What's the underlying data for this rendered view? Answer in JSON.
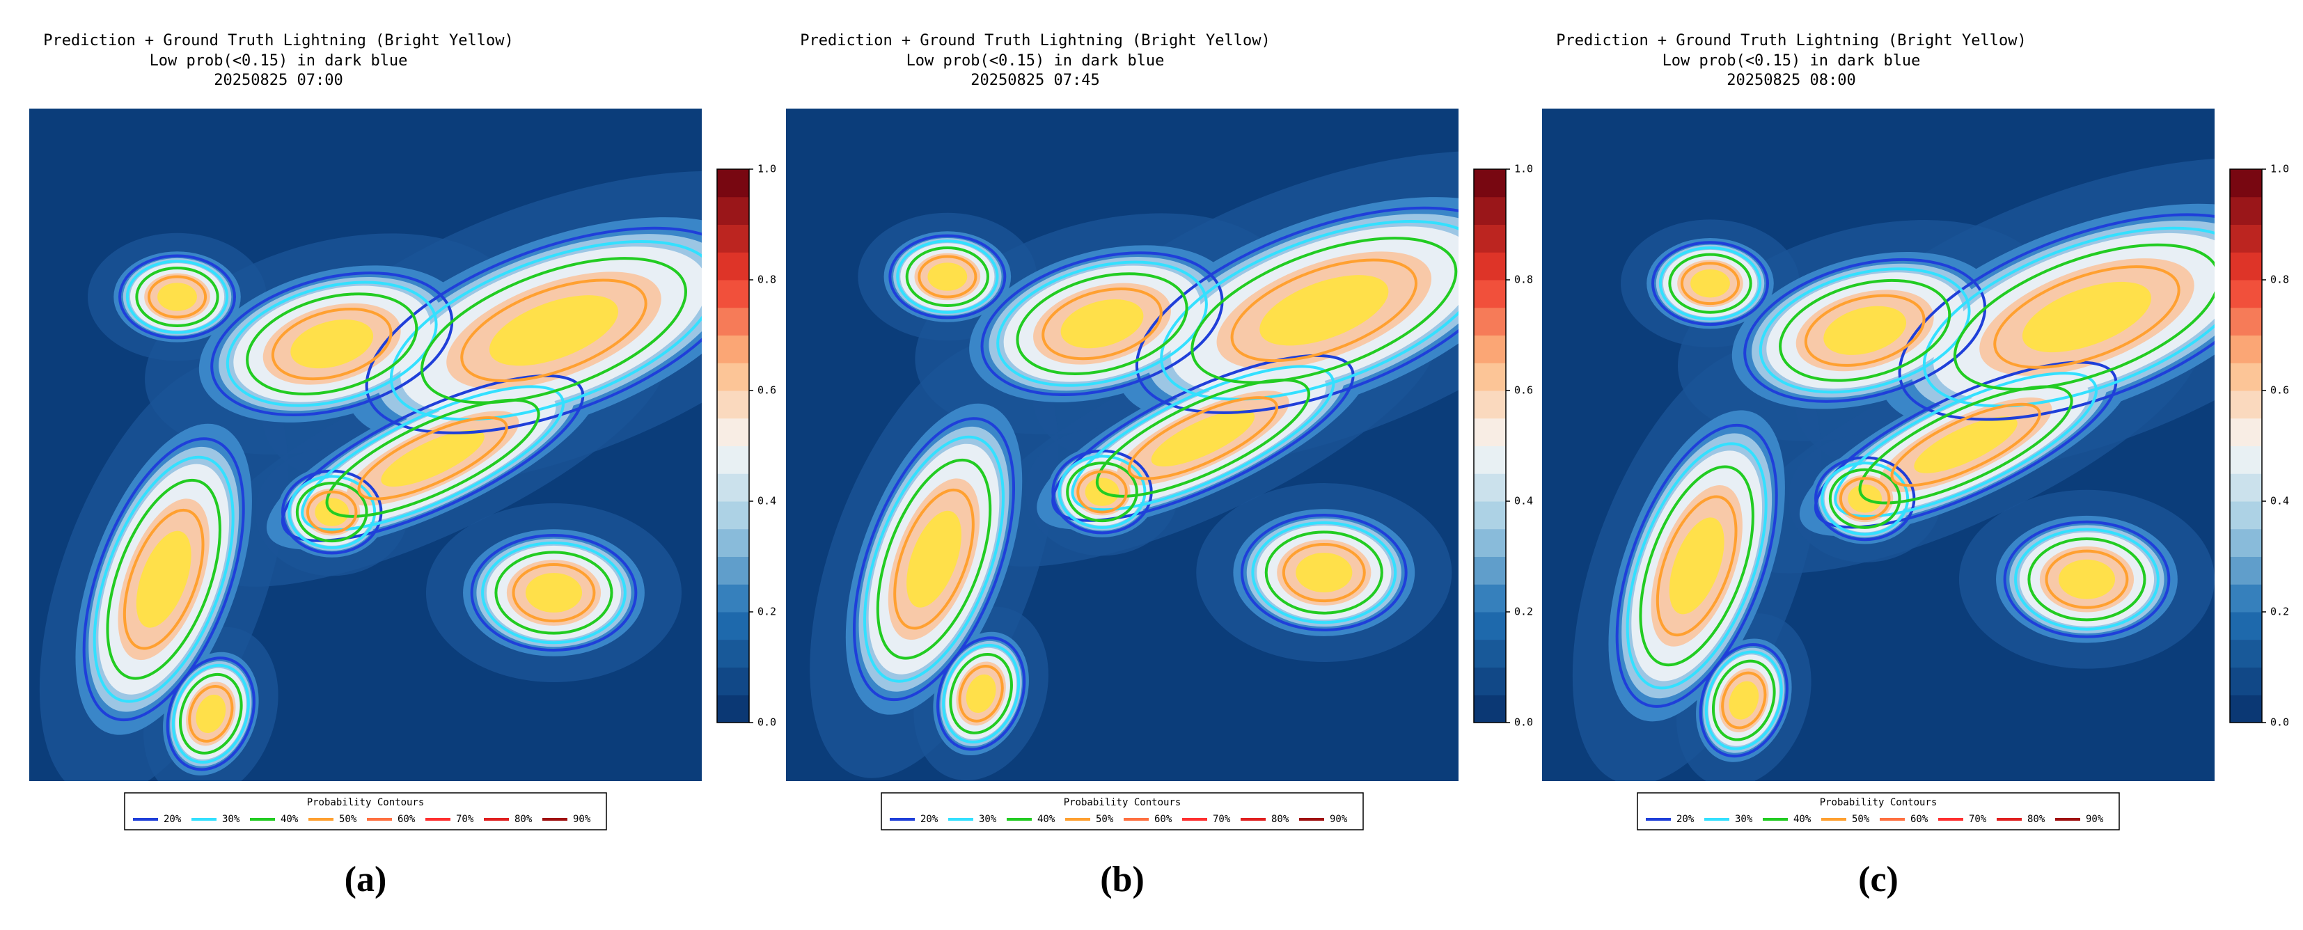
{
  "chart_data": [
    {
      "type": "heatmap",
      "title": "Prediction + Ground Truth Lightning (Bright Yellow)",
      "subtitle": "Low prob(<0.15) in dark blue",
      "timestamp": "20250825 07:00",
      "clim": [
        0,
        1
      ],
      "colorbar_ticks": [
        {
          "value": 0,
          "label": "0.0"
        },
        {
          "value": 0.2,
          "label": "0.2"
        },
        {
          "value": 0.4,
          "label": "0.4"
        },
        {
          "value": 0.6,
          "label": "0.6"
        },
        {
          "value": 0.8,
          "label": "0.8"
        },
        {
          "value": 1,
          "label": "1.0"
        }
      ],
      "legend_title": "Probability Contours",
      "contours": [
        {
          "name": "20%",
          "color": "#1f3fd9"
        },
        {
          "name": "30%",
          "color": "#33e0ff"
        },
        {
          "name": "40%",
          "color": "#22cc22"
        },
        {
          "name": "50%",
          "color": "#ffa030"
        },
        {
          "name": "60%",
          "color": "#ff7040"
        },
        {
          "name": "70%",
          "color": "#ff3030"
        },
        {
          "name": "80%",
          "color": "#e02020"
        },
        {
          "name": "90%",
          "color": "#a01010"
        }
      ],
      "panel_label": "(a)"
    },
    {
      "type": "heatmap",
      "title": "Prediction + Ground Truth Lightning (Bright Yellow)",
      "subtitle": "Low prob(<0.15) in dark blue",
      "timestamp": "20250825 07:45",
      "clim": [
        0,
        1
      ],
      "colorbar_ticks": [
        {
          "value": 0,
          "label": "0.0"
        },
        {
          "value": 0.2,
          "label": "0.2"
        },
        {
          "value": 0.4,
          "label": "0.4"
        },
        {
          "value": 0.6,
          "label": "0.6"
        },
        {
          "value": 0.8,
          "label": "0.8"
        },
        {
          "value": 1,
          "label": "1.0"
        }
      ],
      "legend_title": "Probability Contours",
      "contours": [
        {
          "name": "20%",
          "color": "#1f3fd9"
        },
        {
          "name": "30%",
          "color": "#33e0ff"
        },
        {
          "name": "40%",
          "color": "#22cc22"
        },
        {
          "name": "50%",
          "color": "#ffa030"
        },
        {
          "name": "60%",
          "color": "#ff7040"
        },
        {
          "name": "70%",
          "color": "#ff3030"
        },
        {
          "name": "80%",
          "color": "#e02020"
        },
        {
          "name": "90%",
          "color": "#a01010"
        }
      ],
      "panel_label": "(b)"
    },
    {
      "type": "heatmap",
      "title": "Prediction + Ground Truth Lightning (Bright Yellow)",
      "subtitle": "Low prob(<0.15) in dark blue",
      "timestamp": "20250825 08:00",
      "clim": [
        0,
        1
      ],
      "colorbar_ticks": [
        {
          "value": 0,
          "label": "0.0"
        },
        {
          "value": 0.2,
          "label": "0.2"
        },
        {
          "value": 0.4,
          "label": "0.4"
        },
        {
          "value": 0.6,
          "label": "0.6"
        },
        {
          "value": 0.8,
          "label": "0.8"
        },
        {
          "value": 1,
          "label": "1.0"
        }
      ],
      "legend_title": "Probability Contours",
      "contours": [
        {
          "name": "20%",
          "color": "#1f3fd9"
        },
        {
          "name": "30%",
          "color": "#33e0ff"
        },
        {
          "name": "40%",
          "color": "#22cc22"
        },
        {
          "name": "50%",
          "color": "#ffa030"
        },
        {
          "name": "60%",
          "color": "#ff7040"
        },
        {
          "name": "70%",
          "color": "#ff3030"
        },
        {
          "name": "80%",
          "color": "#e02020"
        },
        {
          "name": "90%",
          "color": "#a01010"
        }
      ],
      "panel_label": "(c)"
    }
  ]
}
